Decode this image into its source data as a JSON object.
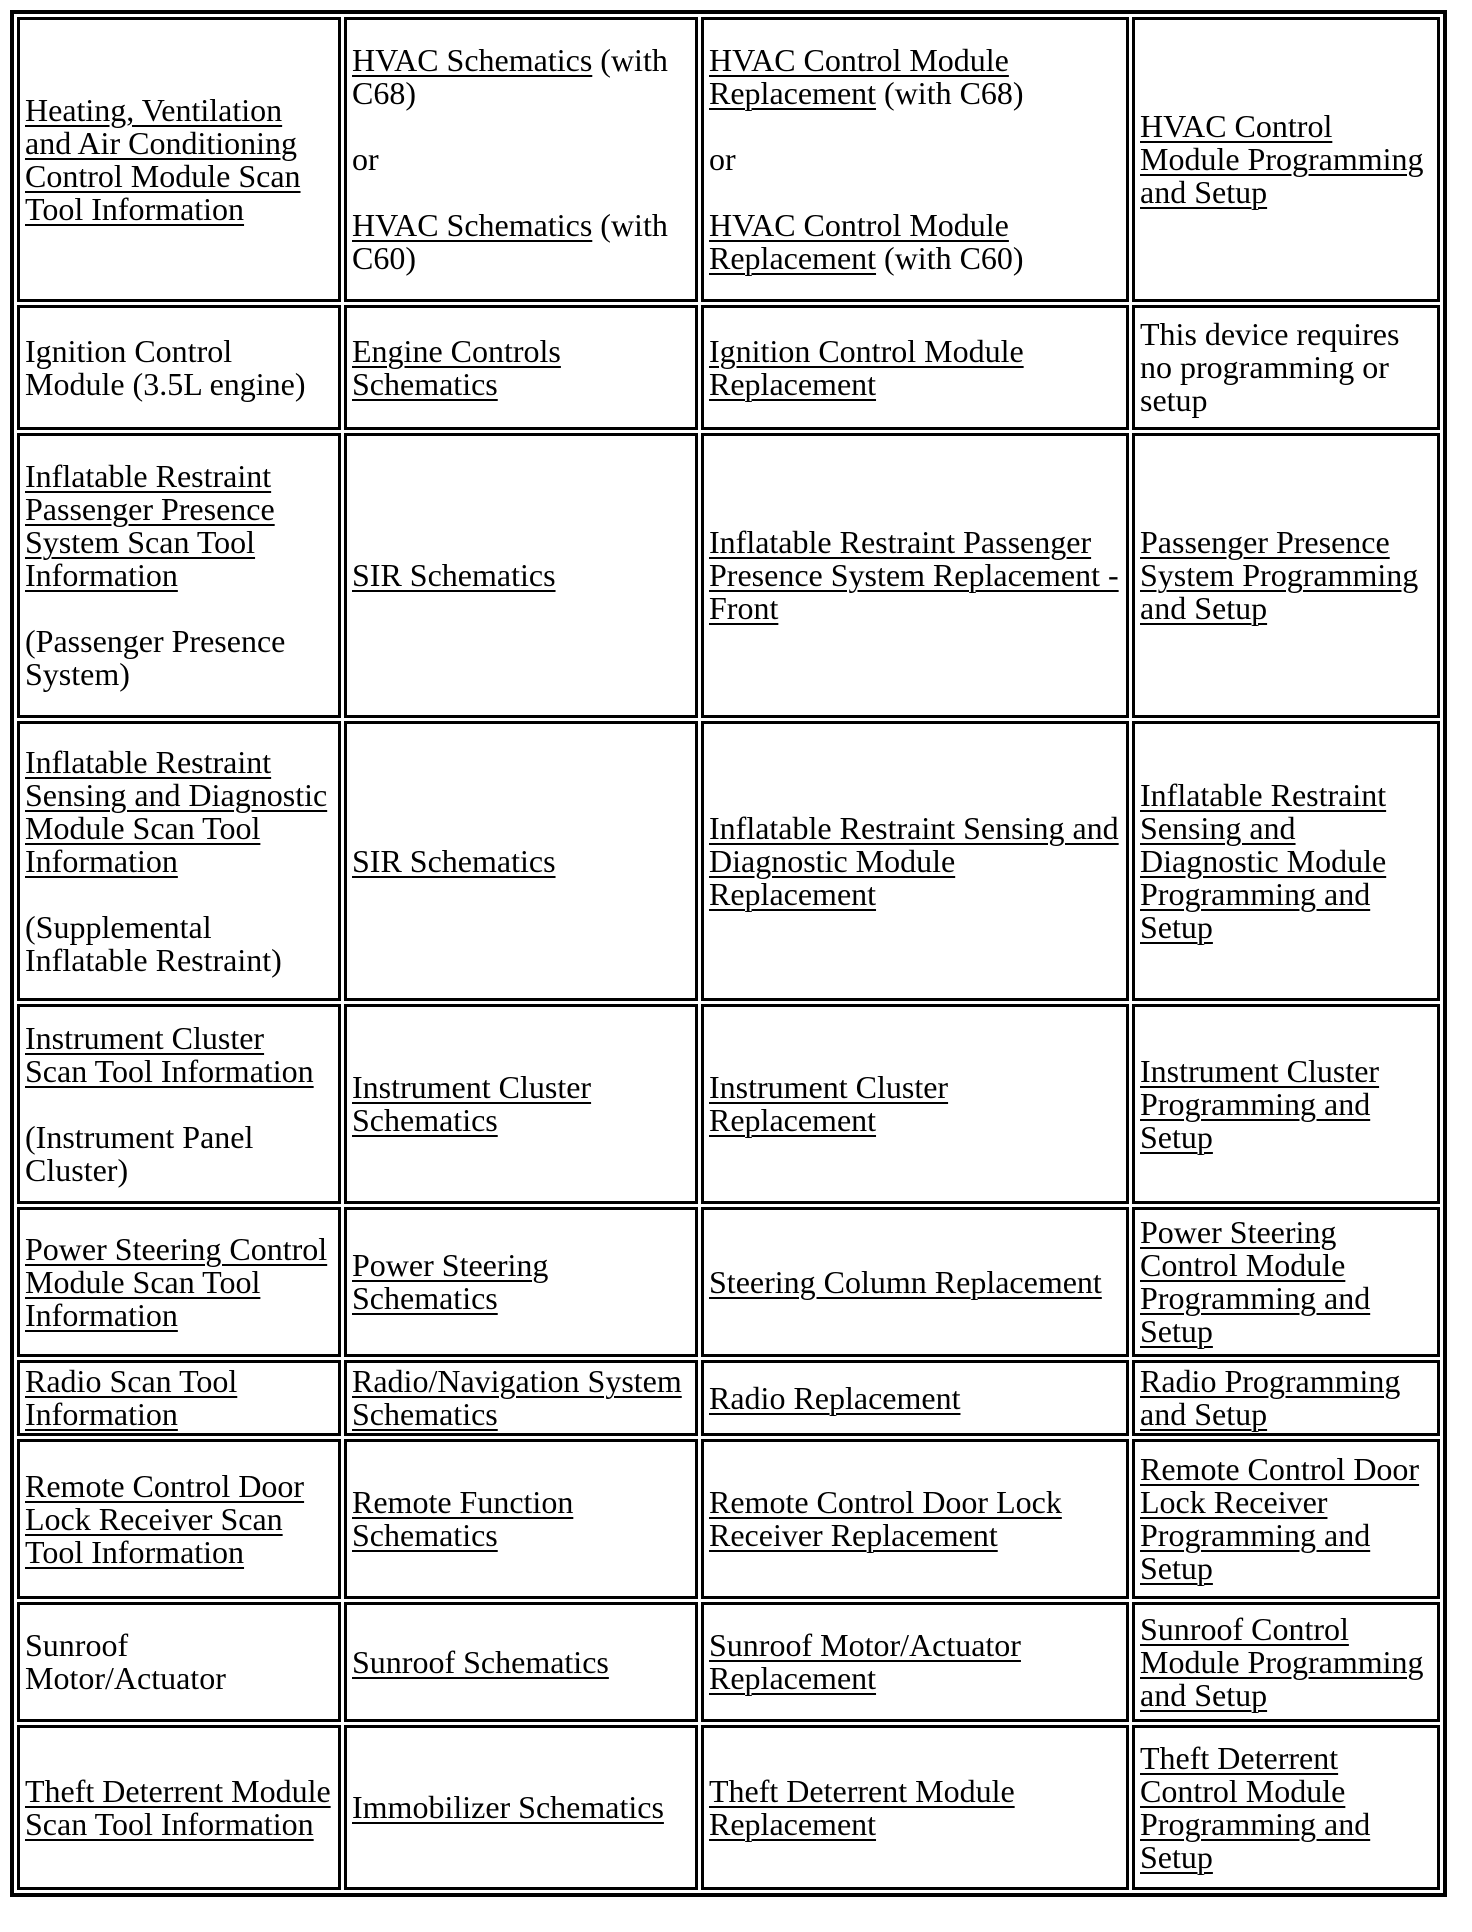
{
  "colors": {
    "text": "#000000",
    "background": "#ffffff",
    "border": "#000000"
  },
  "table": {
    "rows": [
      {
        "cells": [
          {
            "paras": [
              {
                "runs": [
                  {
                    "text": "Heating, Ventilation and Air Conditioning Control Module Scan Tool Information",
                    "link": true
                  }
                ]
              }
            ]
          },
          {
            "paras": [
              {
                "runs": [
                  {
                    "text": "HVAC Schematics",
                    "link": true
                  },
                  {
                    "text": " (with C68)",
                    "link": false
                  }
                ]
              },
              {
                "blank": true
              },
              {
                "runs": [
                  {
                    "text": "or",
                    "link": false
                  }
                ]
              },
              {
                "blank": true
              },
              {
                "runs": [
                  {
                    "text": "HVAC Schematics",
                    "link": true
                  },
                  {
                    "text": " (with C60)",
                    "link": false
                  }
                ]
              }
            ]
          },
          {
            "paras": [
              {
                "runs": [
                  {
                    "text": "HVAC Control Module Replacement",
                    "link": true
                  },
                  {
                    "text": " (with C68)",
                    "link": false
                  }
                ]
              },
              {
                "blank": true
              },
              {
                "runs": [
                  {
                    "text": "or",
                    "link": false
                  }
                ]
              },
              {
                "blank": true
              },
              {
                "runs": [
                  {
                    "text": "HVAC Control Module Replacement",
                    "link": true
                  },
                  {
                    "text": " (with C60)",
                    "link": false
                  }
                ]
              }
            ]
          },
          {
            "paras": [
              {
                "runs": [
                  {
                    "text": "HVAC Control Module Programming and Setup",
                    "link": true
                  }
                ]
              }
            ]
          }
        ]
      },
      {
        "cells": [
          {
            "paras": [
              {
                "runs": [
                  {
                    "text": "Ignition Control Module (3.5L engine)",
                    "link": false
                  }
                ]
              }
            ]
          },
          {
            "paras": [
              {
                "runs": [
                  {
                    "text": "Engine Controls Schematics",
                    "link": true
                  }
                ]
              }
            ]
          },
          {
            "paras": [
              {
                "runs": [
                  {
                    "text": "Ignition Control Module Replacement",
                    "link": true
                  }
                ]
              }
            ]
          },
          {
            "paras": [
              {
                "runs": [
                  {
                    "text": "This device requires no programming or setup",
                    "link": false
                  }
                ]
              }
            ]
          }
        ]
      },
      {
        "cells": [
          {
            "paras": [
              {
                "runs": [
                  {
                    "text": "Inflatable Restraint Passenger Presence System Scan Tool Information",
                    "link": true
                  }
                ]
              },
              {
                "blank": true
              },
              {
                "runs": [
                  {
                    "text": "(Passenger Presence System)",
                    "link": false
                  }
                ]
              }
            ]
          },
          {
            "paras": [
              {
                "runs": [
                  {
                    "text": "SIR Schematics",
                    "link": true
                  }
                ]
              }
            ]
          },
          {
            "paras": [
              {
                "runs": [
                  {
                    "text": "Inflatable Restraint Passenger Presence System Replacement - Front",
                    "link": true
                  }
                ]
              }
            ]
          },
          {
            "paras": [
              {
                "runs": [
                  {
                    "text": "Passenger Presence System Programming and Setup",
                    "link": true
                  }
                ]
              }
            ]
          }
        ]
      },
      {
        "cells": [
          {
            "paras": [
              {
                "runs": [
                  {
                    "text": "Inflatable Restraint Sensing and Diagnostic Module Scan Tool Information",
                    "link": true
                  }
                ]
              },
              {
                "blank": true
              },
              {
                "runs": [
                  {
                    "text": "(Supplemental Inflatable Restraint)",
                    "link": false
                  }
                ]
              }
            ]
          },
          {
            "paras": [
              {
                "runs": [
                  {
                    "text": "SIR Schematics",
                    "link": true
                  }
                ]
              }
            ]
          },
          {
            "paras": [
              {
                "runs": [
                  {
                    "text": "Inflatable Restraint Sensing and Diagnostic Module Replacement",
                    "link": true
                  }
                ]
              }
            ]
          },
          {
            "paras": [
              {
                "runs": [
                  {
                    "text": "Inflatable Restraint Sensing and Diagnostic Module Programming and Setup",
                    "link": true
                  }
                ]
              }
            ]
          }
        ]
      },
      {
        "cells": [
          {
            "paras": [
              {
                "runs": [
                  {
                    "text": "Instrument Cluster Scan Tool Information",
                    "link": true
                  }
                ]
              },
              {
                "blank": true
              },
              {
                "runs": [
                  {
                    "text": "(Instrument Panel Cluster)",
                    "link": false
                  }
                ]
              }
            ]
          },
          {
            "paras": [
              {
                "runs": [
                  {
                    "text": "Instrument Cluster Schematics",
                    "link": true
                  }
                ]
              }
            ]
          },
          {
            "paras": [
              {
                "runs": [
                  {
                    "text": "Instrument Cluster Replacement",
                    "link": true
                  }
                ]
              }
            ]
          },
          {
            "paras": [
              {
                "runs": [
                  {
                    "text": "Instrument Cluster Programming and Setup",
                    "link": true
                  }
                ]
              }
            ]
          }
        ]
      },
      {
        "cells": [
          {
            "paras": [
              {
                "runs": [
                  {
                    "text": "Power Steering Control Module Scan Tool Information",
                    "link": true
                  }
                ]
              }
            ]
          },
          {
            "paras": [
              {
                "runs": [
                  {
                    "text": "Power Steering Schematics",
                    "link": true
                  }
                ]
              }
            ]
          },
          {
            "paras": [
              {
                "runs": [
                  {
                    "text": "Steering Column Replacement",
                    "link": true
                  }
                ]
              }
            ]
          },
          {
            "paras": [
              {
                "runs": [
                  {
                    "text": "Power Steering Control Module Programming and Setup",
                    "link": true
                  }
                ]
              }
            ]
          }
        ]
      },
      {
        "cells": [
          {
            "paras": [
              {
                "runs": [
                  {
                    "text": "Radio Scan Tool Information",
                    "link": true
                  }
                ]
              }
            ]
          },
          {
            "paras": [
              {
                "runs": [
                  {
                    "text": "Radio/Navigation System Schematics",
                    "link": true
                  }
                ]
              }
            ]
          },
          {
            "paras": [
              {
                "runs": [
                  {
                    "text": "Radio Replacement",
                    "link": true
                  }
                ]
              }
            ]
          },
          {
            "paras": [
              {
                "runs": [
                  {
                    "text": "Radio Programming and Setup",
                    "link": true
                  }
                ]
              }
            ]
          }
        ]
      },
      {
        "cells": [
          {
            "paras": [
              {
                "runs": [
                  {
                    "text": "Remote Control Door Lock Receiver Scan Tool Information",
                    "link": true
                  }
                ]
              }
            ]
          },
          {
            "paras": [
              {
                "runs": [
                  {
                    "text": "Remote Function Schematics",
                    "link": true
                  }
                ]
              }
            ]
          },
          {
            "paras": [
              {
                "runs": [
                  {
                    "text": "Remote Control Door Lock Receiver Replacement",
                    "link": true
                  }
                ]
              }
            ]
          },
          {
            "paras": [
              {
                "runs": [
                  {
                    "text": "Remote Control Door Lock Receiver Programming and Setup",
                    "link": true
                  }
                ]
              }
            ]
          }
        ]
      },
      {
        "cells": [
          {
            "paras": [
              {
                "runs": [
                  {
                    "text": "Sunroof Motor/Actuator",
                    "link": false
                  }
                ]
              }
            ]
          },
          {
            "paras": [
              {
                "runs": [
                  {
                    "text": "Sunroof Schematics",
                    "link": true
                  }
                ]
              }
            ]
          },
          {
            "paras": [
              {
                "runs": [
                  {
                    "text": "Sunroof Motor/Actuator Replacement",
                    "link": true
                  }
                ]
              }
            ]
          },
          {
            "paras": [
              {
                "runs": [
                  {
                    "text": "Sunroof Control Module Programming and Setup",
                    "link": true
                  }
                ]
              }
            ]
          }
        ]
      },
      {
        "cells": [
          {
            "paras": [
              {
                "runs": [
                  {
                    "text": "Theft Deterrent Module Scan Tool Information",
                    "link": true
                  }
                ]
              }
            ]
          },
          {
            "paras": [
              {
                "runs": [
                  {
                    "text": "Immobilizer Schematics",
                    "link": true
                  }
                ]
              }
            ]
          },
          {
            "paras": [
              {
                "runs": [
                  {
                    "text": "Theft Deterrent Module Replacement",
                    "link": true
                  }
                ]
              }
            ]
          },
          {
            "paras": [
              {
                "runs": [
                  {
                    "text": "Theft Deterrent Control Module Programming and Setup",
                    "link": true
                  }
                ]
              }
            ]
          }
        ]
      }
    ]
  }
}
